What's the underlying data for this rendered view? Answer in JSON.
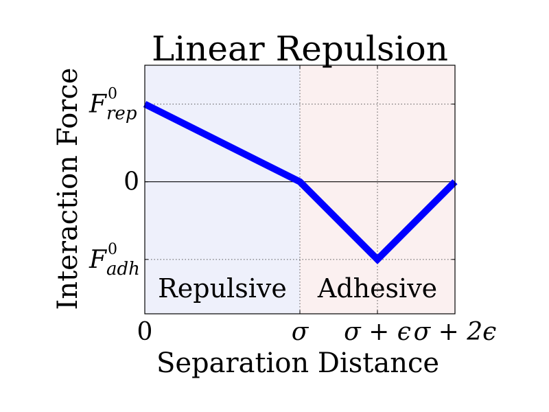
{
  "chart_data": {
    "type": "line",
    "title": "Linear Repulsion",
    "xlabel": "Separation Distance",
    "ylabel": "Interaction Force",
    "xlim": [
      0,
      2
    ],
    "ylim": [
      -1.7,
      1.5
    ],
    "grid": "dotted",
    "x_ticks": [
      {
        "value": 0,
        "label": "0"
      },
      {
        "value": 1,
        "label": "σ"
      },
      {
        "value": 1.5,
        "label": "σ + ϵ"
      },
      {
        "value": 2,
        "label": "σ + 2ϵ"
      }
    ],
    "y_ticks": [
      {
        "value": 1,
        "label": "F",
        "sup": "0",
        "sub": "rep"
      },
      {
        "value": 0,
        "label": "0"
      },
      {
        "value": -1,
        "label": "F",
        "sup": "0",
        "sub": "adh"
      }
    ],
    "series": [
      {
        "color": "#0000ff",
        "x": [
          0,
          1,
          1.5,
          2
        ],
        "y": [
          1,
          0,
          -1,
          0
        ]
      }
    ],
    "regions": [
      {
        "label": "Repulsive",
        "x_range": [
          0,
          1
        ],
        "color": "#eef0fb"
      },
      {
        "label": "Adhesive",
        "x_range": [
          1,
          2
        ],
        "color": "#fbf0f0"
      }
    ]
  }
}
